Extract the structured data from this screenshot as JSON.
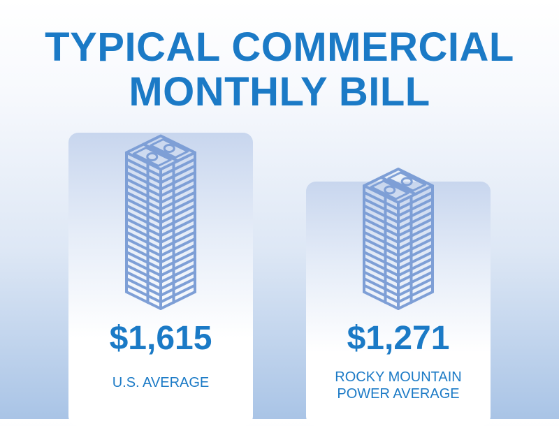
{
  "title": {
    "line1": "TYPICAL COMMERCIAL",
    "line2": "MONTHLY BILL"
  },
  "chart_data": {
    "type": "bar",
    "title": "TYPICAL COMMERCIAL MONTHLY BILL",
    "unit": "$",
    "categories": [
      "U.S. AVERAGE",
      "ROCKY MOUNTAIN POWER AVERAGE"
    ],
    "values": [
      1615,
      1271
    ],
    "value_labels": [
      "$1,615",
      "$1,271"
    ],
    "category_lines": [
      [
        "U.S. AVERAGE"
      ],
      [
        "ROCKY MOUNTAIN",
        "POWER AVERAGE"
      ]
    ],
    "mark_icon": "money-stack-icon"
  },
  "colors": {
    "accent": "#1b7ac6",
    "icon_stroke": "#7e9fd6",
    "card_top": "#c8d6ee"
  }
}
